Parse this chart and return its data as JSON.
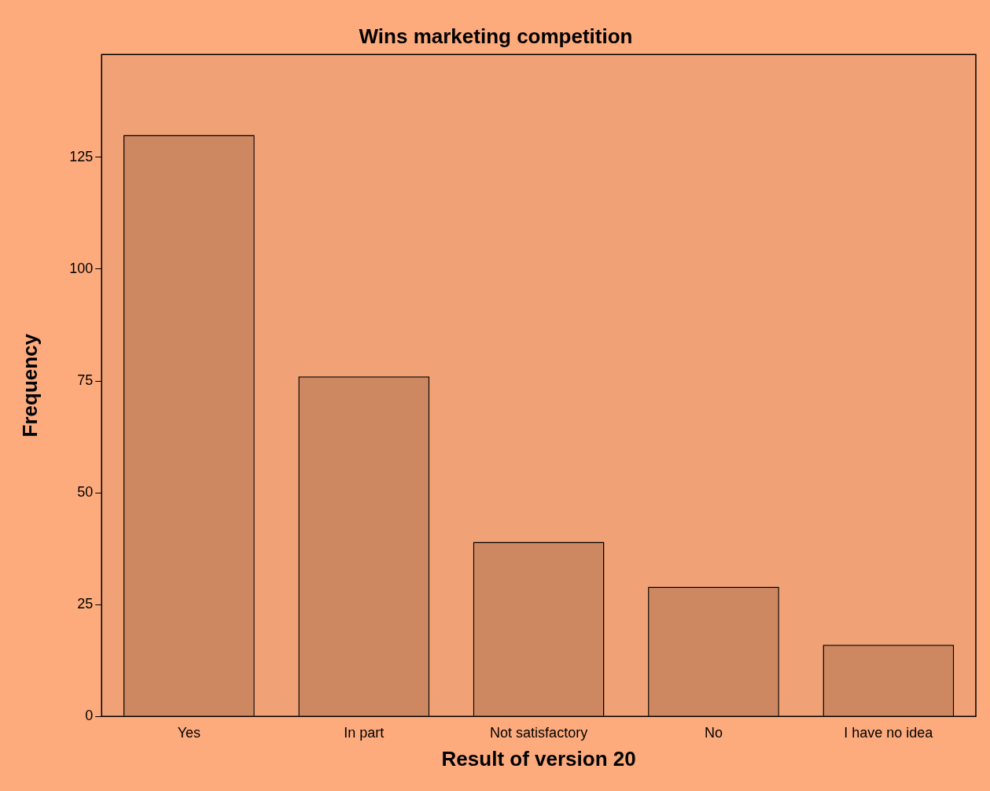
{
  "chart_data": {
    "type": "bar",
    "title": "Wins marketing competition",
    "xlabel": "Result of version 20",
    "ylabel": "Frequency",
    "categories": [
      "Yes",
      "In part",
      "Not satisfactory",
      "No",
      "I have no idea"
    ],
    "values": [
      130,
      76,
      39,
      29,
      16
    ],
    "color": "#cd8862",
    "ylim": [
      0,
      148
    ],
    "yticks": [
      0,
      25,
      50,
      75,
      100,
      125
    ],
    "grid": false,
    "legend": false
  }
}
